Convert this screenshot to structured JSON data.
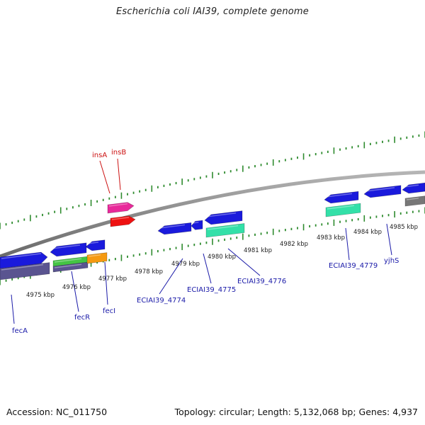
{
  "title": "Escherichia coli IAI39, complete genome",
  "footer": {
    "accession": "Accession: NC_011750",
    "stats": "Topology: circular; Length: 5,132,068 bp; Genes: 4,937"
  },
  "colors": {
    "backbone": "#8a8a8a",
    "tick": "#2e8b2e",
    "gene_label": "#1a1aa8",
    "is_label": "#cc1111",
    "blue_gene": "#1a1adc",
    "pink_gene": "#e8299a",
    "red_gene": "#ee1111",
    "teal_gene": "#33e0a8",
    "slate_gene": "#5a5490",
    "green_gene": "#44c444",
    "orange_gene": "#f59a10",
    "gray_gene": "#777777"
  },
  "scale_labels": [
    "4975 kbp",
    "4976 kbp",
    "4977 kbp",
    "4978 kbp",
    "4979 kbp",
    "4980 kbp",
    "4981 kbp",
    "4982 kbp",
    "4983 kbp",
    "4984 kbp",
    "4985 kbp"
  ],
  "gene_labels": {
    "fecA": "fecA",
    "fecR": "fecR",
    "fecI": "fecI",
    "e4774": "ECIAI39_4774",
    "e4775": "ECIAI39_4775",
    "e4776": "ECIAI39_4776",
    "e4779": "ECIAI39_4779",
    "yjhS": "yjhS",
    "insA": "insA",
    "insB": "insB"
  }
}
